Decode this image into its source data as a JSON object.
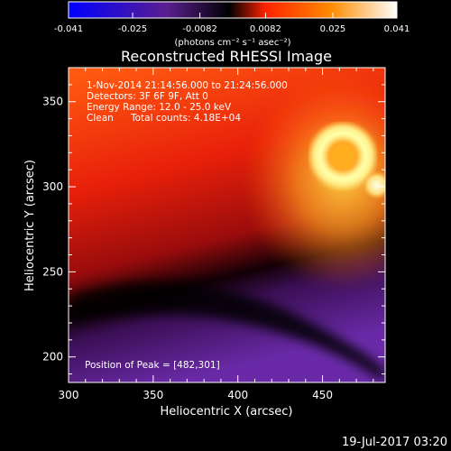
{
  "chart_data": {
    "type": "heatmap",
    "title": "Reconstructed RHESSI Image",
    "xlabel": "Heliocentric X (arcsec)",
    "ylabel": "Heliocentric Y (arcsec)",
    "xlim": [
      300,
      487
    ],
    "ylim": [
      185,
      370
    ],
    "x_ticks": [
      300,
      350,
      400,
      450
    ],
    "y_ticks": [
      200,
      250,
      300,
      350
    ],
    "colorbar": {
      "min": -0.041,
      "max": 0.041,
      "ticks": [
        "-0.041",
        "-0.025",
        "-0.0082",
        "0.0082",
        "0.025",
        "0.041"
      ],
      "unit": "(photons cm⁻² s⁻¹ asec⁻²)",
      "colormap": [
        "#0000ff",
        "#5a1e8f",
        "#000000",
        "#ff2200",
        "#ff8c00",
        "#ffffff"
      ]
    },
    "annotations": {
      "time_range": "1-Nov-2014 21:14:56.000 to 21:24:56.000",
      "detectors": "Detectors: 3F 6F 9F, Att 0",
      "energy_range": "Energy Range: 12.0 - 25.0 keV",
      "clean_label": "Clean",
      "total_counts": "Total counts: 4.18E+04",
      "peak": "Position of Peak = [482,301]"
    },
    "sources": [
      {
        "x": 462,
        "y": 318,
        "level": "peak ring"
      },
      {
        "x": 482,
        "y": 301,
        "level": "peak"
      }
    ]
  },
  "footer": {
    "timestamp": "19-Jul-2017 03:20"
  }
}
